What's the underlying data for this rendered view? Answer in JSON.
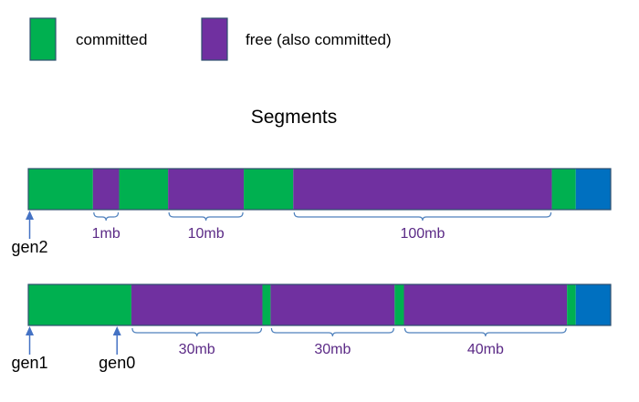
{
  "colors": {
    "committed": "#00b050",
    "free": "#7030a0",
    "reserved": "#0070c0",
    "outline": "#2f4f6f",
    "brace": "#4f81bd",
    "arrow": "#4472c4",
    "size_label": "#5b2a86"
  },
  "legend": {
    "committed": "committed",
    "free": "free (also committed)"
  },
  "title": "Segments",
  "segments": [
    {
      "name": "segment-gen2",
      "blocks": [
        {
          "type": "committed",
          "start": 0.0,
          "end": 0.111
        },
        {
          "type": "free",
          "start": 0.111,
          "end": 0.156
        },
        {
          "type": "committed",
          "start": 0.156,
          "end": 0.24
        },
        {
          "type": "free",
          "start": 0.24,
          "end": 0.37
        },
        {
          "type": "committed",
          "start": 0.37,
          "end": 0.455
        },
        {
          "type": "free",
          "start": 0.455,
          "end": 0.899
        },
        {
          "type": "committed",
          "start": 0.899,
          "end": 0.94
        },
        {
          "type": "reserved",
          "start": 0.94,
          "end": 1.0
        }
      ],
      "sizes": [
        {
          "label": "1mb",
          "start": 0.111,
          "end": 0.156
        },
        {
          "label": "10mb",
          "start": 0.24,
          "end": 0.37
        },
        {
          "label": "100mb",
          "start": 0.455,
          "end": 0.899
        }
      ],
      "gens": [
        {
          "label": "gen2",
          "at": 0.0
        }
      ]
    },
    {
      "name": "segment-gen1",
      "blocks": [
        {
          "type": "committed",
          "start": 0.0,
          "end": 0.177
        },
        {
          "type": "free",
          "start": 0.177,
          "end": 0.402
        },
        {
          "type": "committed",
          "start": 0.402,
          "end": 0.416
        },
        {
          "type": "free",
          "start": 0.416,
          "end": 0.629
        },
        {
          "type": "committed",
          "start": 0.629,
          "end": 0.645
        },
        {
          "type": "free",
          "start": 0.645,
          "end": 0.925
        },
        {
          "type": "committed",
          "start": 0.925,
          "end": 0.94
        },
        {
          "type": "reserved",
          "start": 0.94,
          "end": 1.0
        }
      ],
      "sizes": [
        {
          "label": "30mb",
          "start": 0.177,
          "end": 0.402
        },
        {
          "label": "30mb",
          "start": 0.416,
          "end": 0.629
        },
        {
          "label": "40mb",
          "start": 0.645,
          "end": 0.925
        }
      ],
      "gens": [
        {
          "label": "gen1",
          "at": 0.0
        },
        {
          "label": "gen0",
          "at": 0.15
        }
      ]
    }
  ]
}
